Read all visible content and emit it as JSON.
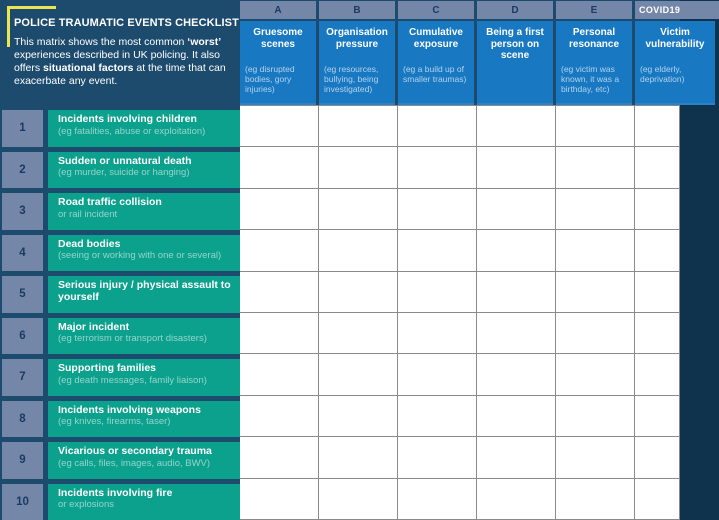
{
  "colors": {
    "navy_background": "#1d4b6e",
    "slate_index": "#7487a8",
    "header_blue": "#1878c2",
    "label_teal": "#0ca18d",
    "bracket_yellow": "#e9e64f",
    "grid_line": "#8a8a8a",
    "index_text": "#1c3a66"
  },
  "header": {
    "title": "POLICE TRAUMATIC EVENTS CHECKLIST",
    "intro_1": "This matrix shows the most common ",
    "intro_bold_1": "‘worst’",
    "intro_2": " experiences described in UK policing. It also offers ",
    "intro_bold_2": "situational factors",
    "intro_3": " at the time that can exacerbate any event."
  },
  "columns": [
    {
      "letter": "A",
      "title": "Gruesome scenes",
      "subtitle": "(eg disrupted bodies, gory injuries)"
    },
    {
      "letter": "B",
      "title": "Organisation pressure",
      "subtitle": "(eg resources, bullying, being investigated)"
    },
    {
      "letter": "C",
      "title": "Cumulative exposure",
      "subtitle": "(eg a build up of smaller traumas)"
    },
    {
      "letter": "D",
      "title": "Being a first person on scene",
      "subtitle": ""
    },
    {
      "letter": "E",
      "title": "Personal resonance",
      "subtitle": "(eg victim was known, it was a birthday, etc)"
    },
    {
      "letter": "COVID19",
      "title": "Victim vulnerability",
      "subtitle": "(eg elderly, deprivation)"
    }
  ],
  "rows": [
    {
      "num": "1",
      "title": "Incidents involving children",
      "subtitle": "(eg fatalities, abuse or exploitation)"
    },
    {
      "num": "2",
      "title": "Sudden or unnatural death",
      "subtitle": "(eg murder, suicide or hanging)"
    },
    {
      "num": "3",
      "title": "Road traffic collision",
      "subtitle": "or rail incident"
    },
    {
      "num": "4",
      "title": "Dead bodies",
      "subtitle": "(seeing or working with one or several)"
    },
    {
      "num": "5",
      "title": "Serious injury / physical assault to yourself",
      "subtitle": ""
    },
    {
      "num": "6",
      "title": "Major incident",
      "subtitle": "(eg terrorism or transport disasters)"
    },
    {
      "num": "7",
      "title": "Supporting families",
      "subtitle": "(eg death messages, family liaison)"
    },
    {
      "num": "8",
      "title": "Incidents involving weapons",
      "subtitle": "(eg knives, firearms, taser)"
    },
    {
      "num": "9",
      "title": "Vicarious or secondary trauma",
      "subtitle": "(eg calls, files, images, audio, BWV)"
    },
    {
      "num": "10",
      "title": "Incidents involving fire",
      "subtitle": "or explosions"
    }
  ],
  "grid": {
    "row_count": 10,
    "col_count": 6
  }
}
